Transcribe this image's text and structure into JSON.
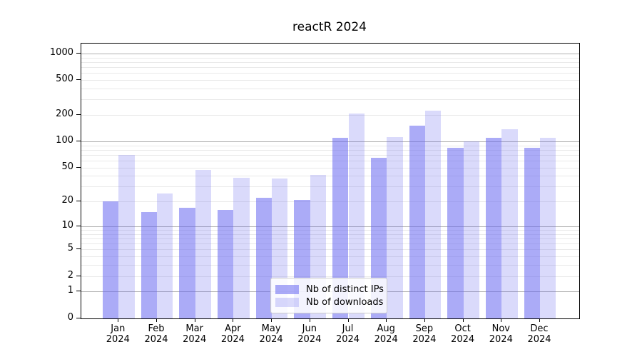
{
  "title": "reactR 2024",
  "chart_data": {
    "type": "bar",
    "title": "reactR 2024",
    "categories": [
      "Jan 2024",
      "Feb 2024",
      "Mar 2024",
      "Apr 2024",
      "May 2024",
      "Jun 2024",
      "Jul 2024",
      "Aug 2024",
      "Sep 2024",
      "Oct 2024",
      "Nov 2024",
      "Dec 2024"
    ],
    "series": [
      {
        "name": "Nb of distinct IPs",
        "color": "rgba(102,102,240,0.55)",
        "values": [
          20,
          15,
          17,
          16,
          22,
          21,
          110,
          65,
          150,
          85,
          110,
          85
        ]
      },
      {
        "name": "Nb of downloads",
        "color": "rgba(102,102,240,0.24)",
        "values": [
          70,
          25,
          47,
          38,
          37,
          41,
          208,
          112,
          225,
          100,
          138,
          110
        ]
      }
    ],
    "xlabel": "",
    "ylabel": "",
    "yscale": "log1p",
    "ylim": [
      0,
      1300
    ],
    "yticks": [
      0,
      1,
      2,
      5,
      10,
      20,
      50,
      100,
      200,
      500,
      1000
    ],
    "grid": true,
    "legend_position": "lower center"
  },
  "colors": {
    "background": "#ffffff",
    "axis": "#000000",
    "major_grid": "#b0b0b0",
    "minor_grid": "#e9e9e9",
    "bar_dark": "rgba(102,102,240,0.55)",
    "bar_light": "rgba(102,102,240,0.24)"
  }
}
